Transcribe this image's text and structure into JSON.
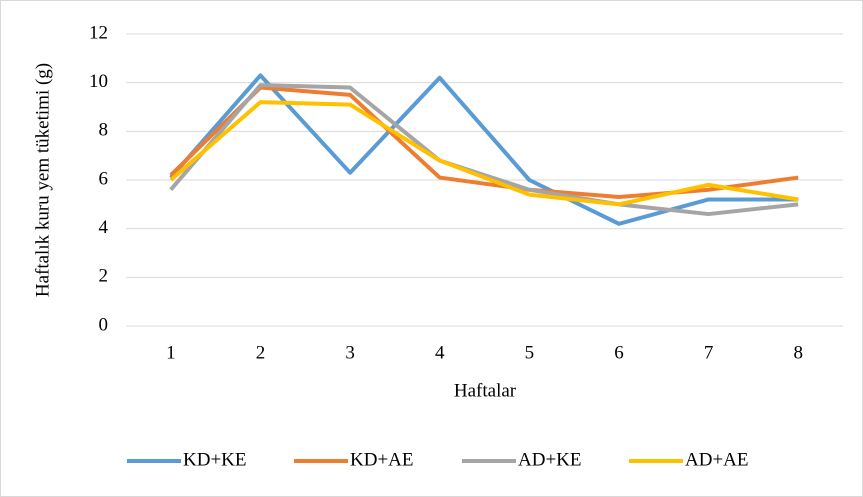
{
  "chart_data": {
    "type": "line",
    "x_label": "Haftalar",
    "y_label": "Haftalık kuru yem tüketimi (g)",
    "categories": [
      "1",
      "2",
      "3",
      "4",
      "5",
      "6",
      "7",
      "8"
    ],
    "series": [
      {
        "name": "KD+KE",
        "color": "#5b9bd5",
        "values": [
          6.1,
          10.3,
          6.3,
          10.2,
          6.0,
          4.2,
          5.2,
          5.2
        ]
      },
      {
        "name": "KD+AE",
        "color": "#ed7d31",
        "values": [
          6.2,
          9.8,
          9.5,
          6.1,
          5.6,
          5.3,
          5.6,
          6.1
        ]
      },
      {
        "name": "AD+KE",
        "color": "#a5a5a5",
        "values": [
          5.6,
          9.9,
          9.8,
          6.8,
          5.6,
          5.0,
          4.6,
          5.0
        ]
      },
      {
        "name": "AD+AE",
        "color": "#ffc000",
        "values": [
          6.0,
          9.2,
          9.1,
          6.8,
          5.4,
          5.0,
          5.8,
          5.2
        ]
      }
    ],
    "ylim": [
      0,
      12
    ],
    "yticks": [
      0,
      2,
      4,
      6,
      8,
      10,
      12
    ],
    "grid": true,
    "legend": "bottom"
  }
}
